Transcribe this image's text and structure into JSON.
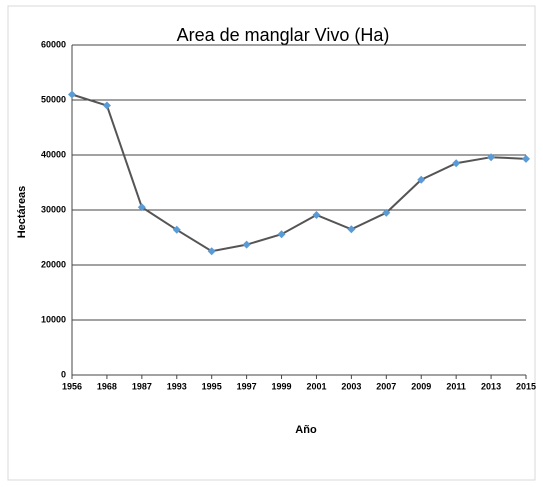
{
  "chart_data": {
    "type": "line",
    "title": "Area de manglar Vivo (Ha)",
    "x_label": "Año",
    "y_label": "Hectáreas",
    "categories": [
      "1956",
      "1968",
      "1987",
      "1993",
      "1995",
      "1997",
      "1999",
      "2001",
      "2003",
      "2007",
      "2009",
      "2011",
      "2013",
      "2015"
    ],
    "series": [
      {
        "name": "Area de manglar Vivo (Ha)",
        "color": "#555555",
        "marker_color": "#5b9bd5",
        "values": [
          51000,
          49000,
          30500,
          26400,
          22500,
          23700,
          25600,
          29100,
          26500,
          29500,
          35500,
          38500,
          39600,
          39300
        ]
      }
    ],
    "ylim": [
      0,
      60000
    ],
    "yticks": [
      0,
      10000,
      20000,
      30000,
      40000,
      50000,
      60000
    ],
    "grid": true
  }
}
